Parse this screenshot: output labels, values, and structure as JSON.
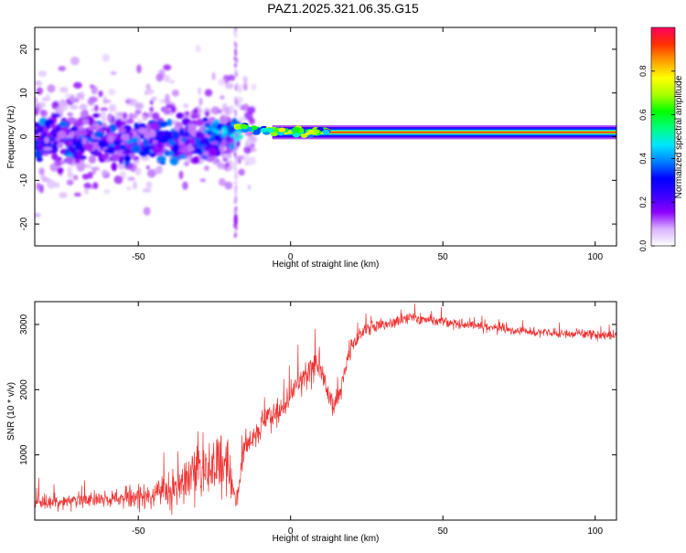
{
  "title": "PAZ1.2025.321.06.35.G15",
  "chart_data": [
    {
      "type": "heatmap",
      "name": "spectrogram",
      "xlabel": "Height of straight line (km)",
      "ylabel": "Frequency (Hz)",
      "xlim": [
        -84,
        107
      ],
      "ylim": [
        -25,
        25
      ],
      "x_ticks": [
        -50,
        0,
        50,
        100
      ],
      "x_tick_labels": [
        "-50",
        "0",
        "50",
        "100"
      ],
      "y_ticks": [
        -20,
        -10,
        0,
        10,
        20
      ],
      "y_tick_labels": [
        "-20",
        "-10",
        "0",
        "10",
        "20"
      ],
      "colorbar": {
        "label": "Normalized spectral amplitude",
        "range": [
          0,
          1
        ],
        "ticks": [
          0.0,
          0.2,
          0.4,
          0.6,
          0.8
        ],
        "tick_labels": [
          "0.0",
          "0.2",
          "0.4",
          "0.6",
          "0.8"
        ],
        "colormap": [
          "#ffffff",
          "#d9b3ff",
          "#8c00ff",
          "#3a00ff",
          "#0000ff",
          "#0080ff",
          "#00e5ff",
          "#00ff80",
          "#00ff00",
          "#aaff00",
          "#ffff00",
          "#ffa000",
          "#ff3000",
          "#ff0060"
        ]
      },
      "features": {
        "stable_tone_start_km": -18,
        "stable_tone_frequency_hz": 1,
        "noisy_region_km": [
          -84,
          -18
        ],
        "noisy_frequency_spread_hz": [
          -10,
          8
        ],
        "vertical_streak_km": -18
      }
    },
    {
      "type": "line",
      "name": "snr",
      "xlabel": "Height of straight line (km)",
      "ylabel": "SNR (10 * v/v)",
      "xlim": [
        -84,
        107
      ],
      "ylim": [
        0,
        3350
      ],
      "x_ticks": [
        -50,
        0,
        50,
        100
      ],
      "x_tick_labels": [
        "-50",
        "0",
        "50",
        "100"
      ],
      "y_ticks": [
        1000,
        2000,
        3000
      ],
      "y_tick_labels": [
        "1000",
        "2000",
        "3000"
      ],
      "line_color": "#ee3333",
      "series": [
        {
          "name": "SNR",
          "x": [
            -84,
            -75,
            -65,
            -55,
            -45,
            -40,
            -35,
            -30,
            -25,
            -22,
            -20,
            -18,
            -17,
            -15,
            -12,
            -10,
            -8,
            -5,
            -2,
            0,
            2,
            5,
            8,
            10,
            12,
            14,
            16,
            18,
            20,
            22,
            25,
            30,
            35,
            40,
            45,
            50,
            55,
            60,
            65,
            70,
            75,
            80,
            85,
            90,
            95,
            100,
            105,
            107
          ],
          "y": [
            250,
            280,
            300,
            320,
            400,
            450,
            600,
            750,
            850,
            950,
            800,
            250,
            500,
            1150,
            1300,
            1400,
            1550,
            1600,
            1700,
            1950,
            2050,
            2200,
            2400,
            2300,
            2000,
            1700,
            1900,
            2350,
            2650,
            2800,
            2950,
            3000,
            3050,
            3100,
            3080,
            3050,
            3000,
            2980,
            2950,
            2930,
            2900,
            2880,
            2870,
            2860,
            2850,
            2840,
            2830,
            2820
          ],
          "noise_amplitude": [
            220,
            230,
            240,
            300,
            420,
            520,
            700,
            850,
            900,
            950,
            900,
            200,
            300,
            450,
            420,
            400,
            420,
            450,
            380,
            350,
            420,
            480,
            600,
            520,
            450,
            420,
            380,
            280,
            240,
            220,
            200,
            180,
            170,
            160,
            150,
            150,
            150,
            150,
            150,
            150,
            150,
            150,
            150,
            150,
            150,
            150,
            150,
            150
          ]
        }
      ]
    }
  ]
}
